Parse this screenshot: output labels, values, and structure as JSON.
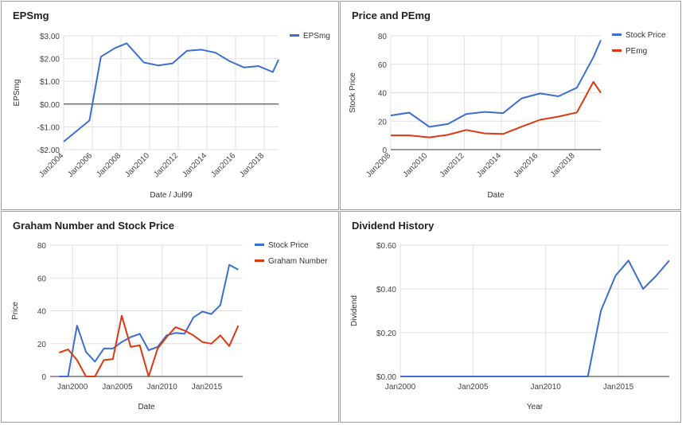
{
  "chart_data": [
    {
      "id": "eps",
      "type": "line",
      "title": "EPSmg",
      "xlabel": "Date / Jul99",
      "ylabel": "EPSmg",
      "xlim": [
        2004,
        2019
      ],
      "ylim": [
        -2,
        3
      ],
      "y_ticks": [
        3,
        2,
        1,
        0,
        -1,
        -2
      ],
      "y_tick_labels": [
        "$3.00",
        "$2.00",
        "$1.00",
        "$0.00",
        "-$1.00",
        "-$2.00"
      ],
      "x_ticks": [
        2004,
        2006,
        2008,
        2010,
        2012,
        2014,
        2016,
        2018
      ],
      "x_tick_labels": [
        "Jan2004",
        "Jan2006",
        "Jan2008",
        "Jan2010",
        "Jan2012",
        "Jan2014",
        "Jan2016",
        "Jan2018"
      ],
      "zero_line": true,
      "legend_position": "top-right",
      "series": [
        {
          "name": "EPSmg",
          "color": "#3c6fd1",
          "x": [
            2004.0,
            2005.8,
            2006.6,
            2007.6,
            2008.4,
            2009.6,
            2010.6,
            2011.6,
            2012.6,
            2013.6,
            2014.6,
            2015.6,
            2016.6,
            2017.6,
            2018.6,
            2019.0
          ],
          "y": [
            -1.65,
            -0.72,
            2.08,
            2.47,
            2.67,
            1.83,
            1.7,
            1.79,
            2.34,
            2.39,
            2.26,
            1.88,
            1.61,
            1.67,
            1.41,
            1.95
          ]
        }
      ]
    },
    {
      "id": "pe",
      "type": "line",
      "title": "Price and PEmg",
      "xlabel": "Date",
      "ylabel": "Stock Price",
      "xlim": [
        2008,
        2019.4
      ],
      "ylim": [
        0,
        80
      ],
      "y_ticks": [
        0,
        20,
        40,
        60,
        80
      ],
      "y_tick_labels": [
        "0",
        "20",
        "40",
        "60",
        "80"
      ],
      "x_ticks": [
        2008,
        2010,
        2012,
        2014,
        2016,
        2018
      ],
      "x_tick_labels": [
        "Jan2008",
        "Jan2010",
        "Jan2012",
        "Jan2014",
        "Jan2016",
        "Jan2018"
      ],
      "legend_position": "top-right",
      "series": [
        {
          "name": "Stock Price",
          "color": "#3c6fd1",
          "x": [
            2008.0,
            2009.0,
            2010.1,
            2011.1,
            2012.1,
            2013.1,
            2014.1,
            2015.1,
            2016.1,
            2017.1,
            2018.1,
            2019.0,
            2019.4
          ],
          "y": [
            24,
            26,
            16,
            18,
            25,
            26.5,
            25.7,
            36,
            39.5,
            37.5,
            43.5,
            65,
            77
          ]
        },
        {
          "name": "PEmg",
          "color": "#dc3912",
          "x": [
            2008.0,
            2009.0,
            2010.1,
            2011.1,
            2012.1,
            2013.1,
            2014.1,
            2015.1,
            2016.1,
            2017.1,
            2018.1,
            2019.0,
            2019.4
          ],
          "y": [
            10,
            10,
            8.6,
            10.4,
            13.8,
            11.4,
            11,
            16.1,
            21,
            23.2,
            26.1,
            47.6,
            40
          ]
        }
      ]
    },
    {
      "id": "graham",
      "type": "line",
      "title": "Graham Number and Stock Price",
      "xlabel": "Date",
      "ylabel": "Price",
      "xlim": [
        1997.5,
        2019
      ],
      "ylim": [
        0,
        80
      ],
      "y_ticks": [
        0,
        20,
        40,
        60,
        80
      ],
      "y_tick_labels": [
        "0",
        "20",
        "40",
        "60",
        "80"
      ],
      "x_ticks": [
        2000,
        2005,
        2010,
        2015
      ],
      "x_tick_labels": [
        "Jan2000",
        "Jan2005",
        "Jan2010",
        "Jan2015"
      ],
      "legend_position": "top-right",
      "series": [
        {
          "name": "Stock Price",
          "color": "#3c6fd1",
          "x": [
            1998.5,
            1999.5,
            2000.5,
            2001.5,
            2002.5,
            2003.5,
            2004.5,
            2005.5,
            2006.5,
            2007.5,
            2008.5,
            2009.5,
            2010.5,
            2011.5,
            2012.5,
            2013.5,
            2014.5,
            2015.5,
            2016.5,
            2017.5,
            2018.5
          ],
          "y": [
            0,
            0,
            31,
            15,
            9,
            17,
            17,
            21,
            24,
            26,
            16,
            18,
            25,
            26.5,
            26,
            36,
            39.5,
            38,
            43.5,
            68,
            65
          ]
        },
        {
          "name": "Graham Number",
          "color": "#dc3912",
          "x": [
            1998.5,
            1999.5,
            2000.5,
            2001.5,
            2002.5,
            2003.5,
            2004.5,
            2005.5,
            2006.5,
            2007.5,
            2008.5,
            2009.5,
            2010.5,
            2011.5,
            2012.5,
            2013.5,
            2014.5,
            2015.5,
            2016.5,
            2017.5,
            2018.5
          ],
          "y": [
            14.5,
            16.5,
            10,
            0,
            0,
            10,
            10.5,
            37,
            18,
            19,
            0,
            17,
            24,
            30,
            28,
            25,
            21,
            20,
            25,
            18.5,
            31
          ]
        }
      ]
    },
    {
      "id": "dividend",
      "type": "line",
      "title": "Dividend History",
      "xlabel": "Year",
      "ylabel": "Dividend",
      "xlim": [
        2000,
        2018.5
      ],
      "ylim": [
        0,
        0.6
      ],
      "y_ticks": [
        0,
        0.2,
        0.4,
        0.6
      ],
      "y_tick_labels": [
        "$0.00",
        "$0.20",
        "$0.40",
        "$0.60"
      ],
      "x_ticks": [
        2000,
        2005,
        2010,
        2015
      ],
      "x_tick_labels": [
        "Jan2000",
        "Jan2005",
        "Jan2010",
        "Jan2015"
      ],
      "series": [
        {
          "name": "",
          "color": "#3c6fd1",
          "x": [
            2000,
            2001,
            2002,
            2003,
            2004,
            2005,
            2006,
            2007,
            2008,
            2009,
            2010,
            2011,
            2012,
            2012.9,
            2013.8,
            2014.8,
            2015.7,
            2016.7,
            2017.6,
            2018.5
          ],
          "y": [
            0,
            0,
            0,
            0,
            0,
            0,
            0,
            0,
            0,
            0,
            0,
            0,
            0,
            0,
            0.3,
            0.46,
            0.53,
            0.4,
            0.46,
            0.53
          ]
        }
      ]
    }
  ]
}
